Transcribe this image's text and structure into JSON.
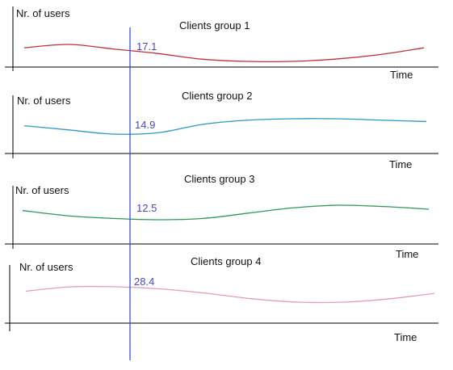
{
  "chart_data": [
    {
      "type": "line",
      "title": "Clients group 1",
      "xlabel": "Time",
      "ylabel": "Nr. of users",
      "cursor_value": "17.1",
      "color": "#c0303a",
      "series": [
        {
          "values": [
            17.6,
            17.9,
            17.5,
            17.1,
            16.6,
            16.4,
            16.4,
            16.6,
            17.0,
            17.6
          ]
        }
      ]
    },
    {
      "type": "line",
      "title": "Clients group 2",
      "xlabel": "Time",
      "ylabel": "Nr. of users",
      "cursor_value": "14.9",
      "color": "#2a98c8",
      "series": [
        {
          "values": [
            15.5,
            15.2,
            14.9,
            15.0,
            15.6,
            15.9,
            16.0,
            16.0,
            15.9,
            15.8
          ]
        }
      ]
    },
    {
      "type": "line",
      "title": "Clients group 3",
      "xlabel": "Time",
      "ylabel": "Nr. of users",
      "cursor_value": "12.5",
      "color": "#2a9a5a",
      "series": [
        {
          "values": [
            13.2,
            12.8,
            12.6,
            12.5,
            12.6,
            13.0,
            13.4,
            13.6,
            13.5,
            13.3
          ]
        }
      ]
    },
    {
      "type": "line",
      "title": "Clients group 4",
      "xlabel": "Time",
      "ylabel": "Nr. of users",
      "cursor_value": "28.4",
      "color": "#e39cc0",
      "series": [
        {
          "values": [
            28.0,
            28.4,
            28.4,
            28.2,
            27.8,
            27.3,
            27.0,
            27.0,
            27.3,
            27.8
          ]
        }
      ]
    }
  ],
  "cursor": {
    "color": "#4050c8"
  }
}
